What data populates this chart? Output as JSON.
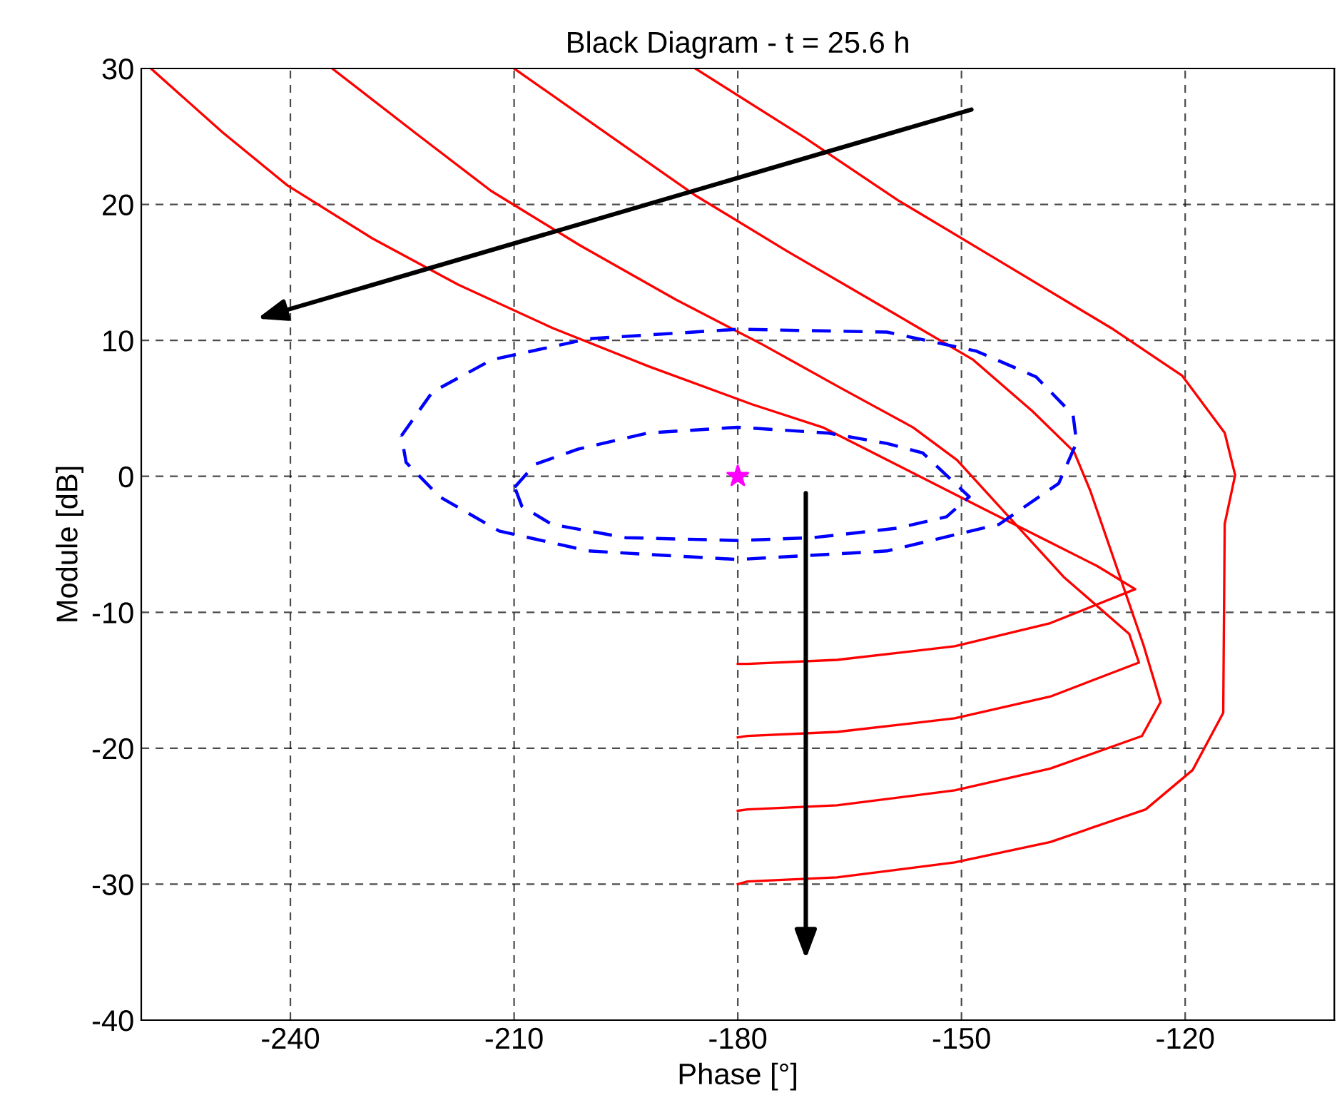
{
  "chart_data": {
    "type": "line",
    "title": "Black Diagram - t = 25.6 h",
    "xlabel": "Phase [°]",
    "ylabel": "Module [dB]",
    "xlim": [
      -260,
      -100
    ],
    "xticks": [
      -240,
      -210,
      -180,
      -150,
      -120
    ],
    "ylim": [
      -40,
      30
    ],
    "yticks": [
      -40,
      -30,
      -20,
      -10,
      0,
      10,
      20,
      30
    ],
    "grid": true,
    "marker": "none",
    "line_style": "solid",
    "series": [
      {
        "color": "#ff0000",
        "x": [
          -258.7,
          -249.1,
          -240.4,
          -229.0,
          -217.5,
          -204.8,
          -192.0,
          -178.1,
          -168.6,
          -147.0,
          -131.8,
          -126.7,
          -138.1,
          -150.9,
          -166.7,
          -178.7,
          -180
        ],
        "values": [
          30,
          25.3,
          21.4,
          17.5,
          14.1,
          10.9,
          8.1,
          5.3,
          3.6,
          -2.4,
          -6.6,
          -8.3,
          -10.8,
          -12.5,
          -13.5,
          -13.8,
          -13.8
        ]
      },
      {
        "color": "#ff0000",
        "x": [
          -234.4,
          -223.1,
          -213.1,
          -201.2,
          -188.3,
          -176.7,
          -166.2,
          -156.5,
          -150.6,
          -136.3,
          -127.5,
          -126.2,
          -138.1,
          -150.9,
          -166.7,
          -178.7,
          -180
        ],
        "values": [
          30,
          25.2,
          21.0,
          17.0,
          13.0,
          9.7,
          6.5,
          3.6,
          1.2,
          -7.4,
          -11.6,
          -13.7,
          -16.2,
          -17.8,
          -18.8,
          -19.1,
          -19.2
        ]
      },
      {
        "color": "#ff0000",
        "x": [
          -210.0,
          -197.0,
          -185.8,
          -173.5,
          -159.1,
          -148.5,
          -140.5,
          -134.9,
          -132.7,
          -125.6,
          -123.3,
          -125.8,
          -138.1,
          -150.9,
          -166.7,
          -178.7,
          -180
        ],
        "values": [
          30,
          25.0,
          20.7,
          16.6,
          12.0,
          8.6,
          4.8,
          1.8,
          -1.1,
          -12.4,
          -16.6,
          -19.1,
          -21.5,
          -23.1,
          -24.2,
          -24.5,
          -24.6
        ]
      },
      {
        "color": "#ff0000",
        "x": [
          -185.7,
          -171.0,
          -158.5,
          -145.7,
          -129.9,
          -120.4,
          -114.7,
          -113.3,
          -114.7,
          -114.9,
          -119.0,
          -125.3,
          -138.1,
          -150.9,
          -166.7,
          -178.7,
          -180
        ],
        "values": [
          30,
          24.9,
          20.3,
          16.1,
          10.9,
          7.4,
          3.2,
          0.1,
          -3.5,
          -17.4,
          -21.6,
          -24.5,
          -26.9,
          -28.4,
          -29.5,
          -29.8,
          -30
        ]
      },
      {
        "type": "scatter",
        "color": "#ff00ff",
        "marker": "star",
        "x": [
          -180
        ],
        "values": [
          0
        ]
      }
    ]
  }
}
